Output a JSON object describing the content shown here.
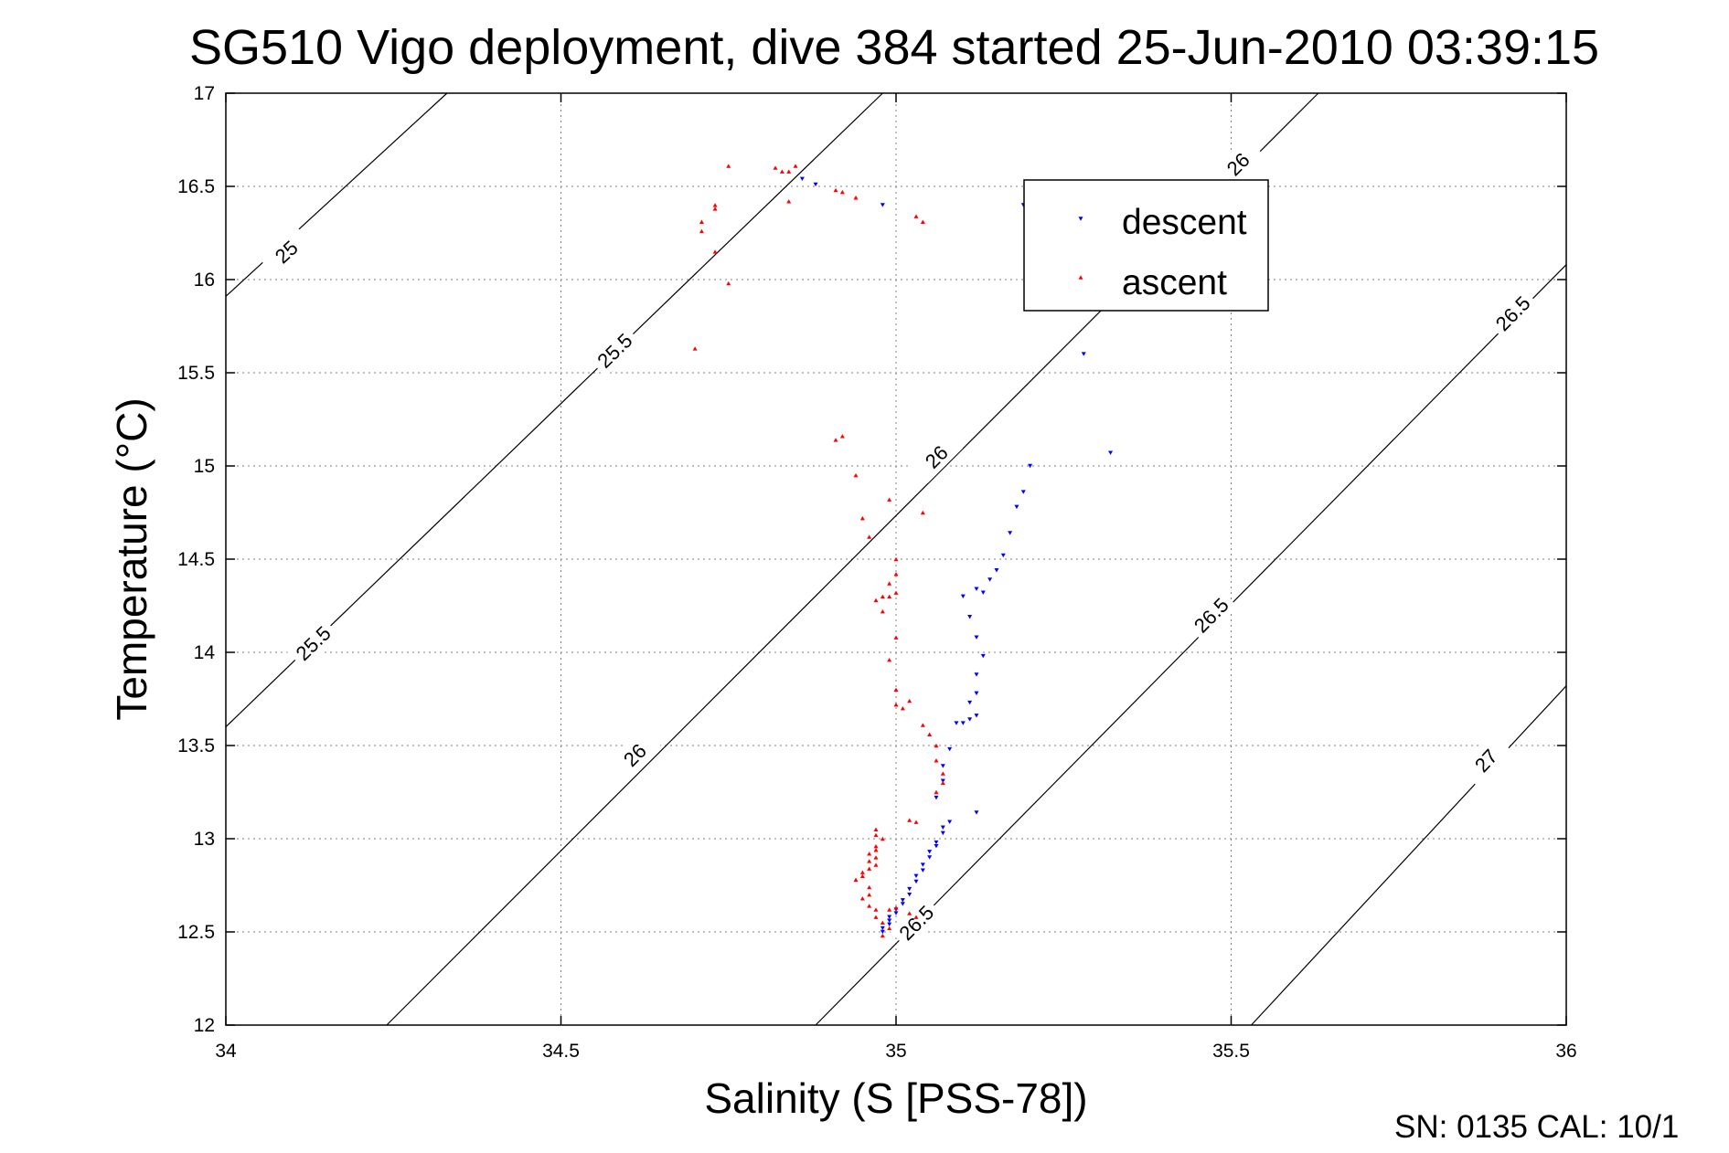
{
  "chart_data": {
    "type": "scatter",
    "title": "SG510 Vigo deployment, dive 384 started 25-Jun-2010 03:39:15",
    "xlabel": "Salinity (S [PSS-78])",
    "ylabel": "Temperature (°C)",
    "xlim": [
      34,
      36
    ],
    "ylim": [
      12,
      17
    ],
    "xticks": [
      34,
      34.5,
      35,
      35.5,
      36
    ],
    "xtick_labels": [
      "34",
      "34.5",
      "35",
      "35.5",
      "36"
    ],
    "yticks": [
      12,
      12.5,
      13,
      13.5,
      14,
      14.5,
      15,
      15.5,
      16,
      16.5,
      17
    ],
    "ytick_labels": [
      "12",
      "12.5",
      "13",
      "13.5",
      "14",
      "14.5",
      "15",
      "15.5",
      "16",
      "16.5",
      "17"
    ],
    "grid": true,
    "legend_position": "top-right",
    "footer": "SN: 0135  CAL: 10/1",
    "colors": {
      "descent": "#0000ff",
      "ascent": "#ff0000",
      "contour": "#000000"
    },
    "density_contours": [
      {
        "level": "25",
        "points": [
          [
            34.0,
            15.91
          ],
          [
            34.33,
            17.0
          ]
        ],
        "labels": [
          [
            34.09,
            16.15
          ]
        ]
      },
      {
        "level": "25.5",
        "points": [
          [
            34.0,
            13.6
          ],
          [
            34.98,
            17.0
          ]
        ],
        "labels": [
          [
            34.13,
            14.05
          ],
          [
            34.58,
            15.62
          ]
        ]
      },
      {
        "level": "26",
        "points": [
          [
            34.24,
            12.0
          ],
          [
            35.63,
            17.0
          ]
        ],
        "labels": [
          [
            34.61,
            13.45
          ],
          [
            35.06,
            15.05
          ],
          [
            35.51,
            16.62
          ]
        ]
      },
      {
        "level": "26.5",
        "points": [
          [
            34.88,
            12.0
          ],
          [
            36.0,
            16.08
          ]
        ],
        "labels": [
          [
            35.03,
            12.55
          ],
          [
            35.47,
            14.2
          ],
          [
            35.92,
            15.82
          ]
        ]
      },
      {
        "level": "27",
        "points": [
          [
            35.53,
            12.0
          ],
          [
            36.0,
            13.82
          ]
        ],
        "labels": [
          [
            35.88,
            13.42
          ]
        ]
      }
    ],
    "series": [
      {
        "name": "descent",
        "marker": "triangle-down",
        "points": [
          [
            34.86,
            16.54
          ],
          [
            34.88,
            16.51
          ],
          [
            34.98,
            16.4
          ],
          [
            35.19,
            16.4
          ],
          [
            35.28,
            15.6
          ],
          [
            35.32,
            15.07
          ],
          [
            35.2,
            15.0
          ],
          [
            35.19,
            14.86
          ],
          [
            35.18,
            14.78
          ],
          [
            35.17,
            14.64
          ],
          [
            35.16,
            14.52
          ],
          [
            35.15,
            14.44
          ],
          [
            35.14,
            14.39
          ],
          [
            35.13,
            14.32
          ],
          [
            35.12,
            14.34
          ],
          [
            35.1,
            14.3
          ],
          [
            35.11,
            14.19
          ],
          [
            35.12,
            14.08
          ],
          [
            35.13,
            13.98
          ],
          [
            35.12,
            13.88
          ],
          [
            35.12,
            13.78
          ],
          [
            35.11,
            13.73
          ],
          [
            35.12,
            13.66
          ],
          [
            35.11,
            13.64
          ],
          [
            35.1,
            13.62
          ],
          [
            35.09,
            13.62
          ],
          [
            35.08,
            13.48
          ],
          [
            35.07,
            13.39
          ],
          [
            35.07,
            13.31
          ],
          [
            35.06,
            13.22
          ],
          [
            35.12,
            13.14
          ],
          [
            35.08,
            13.09
          ],
          [
            35.07,
            13.06
          ],
          [
            35.07,
            13.03
          ],
          [
            35.06,
            12.98
          ],
          [
            35.06,
            12.96
          ],
          [
            35.05,
            12.93
          ],
          [
            35.05,
            12.9
          ],
          [
            35.04,
            12.86
          ],
          [
            35.04,
            12.83
          ],
          [
            35.03,
            12.8
          ],
          [
            35.03,
            12.77
          ],
          [
            35.02,
            12.73
          ],
          [
            35.02,
            12.7
          ],
          [
            35.01,
            12.67
          ],
          [
            35.01,
            12.65
          ],
          [
            35.0,
            12.62
          ],
          [
            35.0,
            12.6
          ],
          [
            34.99,
            12.58
          ],
          [
            34.99,
            12.56
          ],
          [
            34.99,
            12.54
          ],
          [
            34.98,
            12.52
          ],
          [
            34.98,
            12.5
          ]
        ]
      },
      {
        "name": "ascent",
        "marker": "triangle-up",
        "points": [
          [
            34.85,
            16.61
          ],
          [
            34.84,
            16.58
          ],
          [
            34.83,
            16.58
          ],
          [
            34.82,
            16.6
          ],
          [
            34.75,
            16.61
          ],
          [
            34.73,
            16.4
          ],
          [
            34.73,
            16.38
          ],
          [
            34.71,
            16.31
          ],
          [
            34.71,
            16.26
          ],
          [
            34.73,
            16.15
          ],
          [
            34.75,
            15.98
          ],
          [
            34.7,
            15.63
          ],
          [
            34.84,
            16.42
          ],
          [
            34.91,
            16.48
          ],
          [
            34.92,
            16.47
          ],
          [
            34.94,
            16.44
          ],
          [
            35.03,
            16.34
          ],
          [
            35.04,
            16.31
          ],
          [
            34.91,
            15.14
          ],
          [
            34.92,
            15.16
          ],
          [
            34.94,
            14.95
          ],
          [
            34.99,
            14.82
          ],
          [
            35.04,
            14.75
          ],
          [
            34.95,
            14.72
          ],
          [
            34.96,
            14.62
          ],
          [
            35.0,
            14.5
          ],
          [
            35.0,
            14.42
          ],
          [
            34.99,
            14.37
          ],
          [
            35.0,
            14.32
          ],
          [
            34.99,
            14.3
          ],
          [
            34.98,
            14.3
          ],
          [
            34.97,
            14.28
          ],
          [
            34.98,
            14.22
          ],
          [
            35.0,
            14.08
          ],
          [
            34.99,
            13.96
          ],
          [
            35.0,
            13.8
          ],
          [
            35.0,
            13.72
          ],
          [
            35.01,
            13.7
          ],
          [
            35.02,
            13.74
          ],
          [
            35.04,
            13.61
          ],
          [
            35.05,
            13.56
          ],
          [
            35.06,
            13.5
          ],
          [
            35.06,
            13.42
          ],
          [
            35.07,
            13.35
          ],
          [
            35.07,
            13.3
          ],
          [
            35.06,
            13.25
          ],
          [
            35.02,
            13.1
          ],
          [
            35.03,
            13.09
          ],
          [
            34.97,
            13.05
          ],
          [
            34.97,
            13.02
          ],
          [
            34.98,
            13.0
          ],
          [
            34.97,
            12.96
          ],
          [
            34.97,
            12.94
          ],
          [
            34.96,
            12.92
          ],
          [
            34.97,
            12.9
          ],
          [
            34.96,
            12.88
          ],
          [
            34.97,
            12.86
          ],
          [
            34.96,
            12.84
          ],
          [
            34.95,
            12.82
          ],
          [
            34.95,
            12.8
          ],
          [
            34.94,
            12.78
          ],
          [
            34.96,
            12.74
          ],
          [
            34.96,
            12.7
          ],
          [
            34.95,
            12.68
          ],
          [
            34.96,
            12.64
          ],
          [
            34.97,
            12.62
          ],
          [
            34.97,
            12.58
          ],
          [
            34.98,
            12.55
          ],
          [
            34.99,
            12.62
          ],
          [
            35.0,
            12.63
          ],
          [
            35.02,
            12.6
          ],
          [
            35.03,
            12.58
          ],
          [
            34.99,
            12.52
          ],
          [
            34.98,
            12.48
          ]
        ]
      }
    ]
  }
}
